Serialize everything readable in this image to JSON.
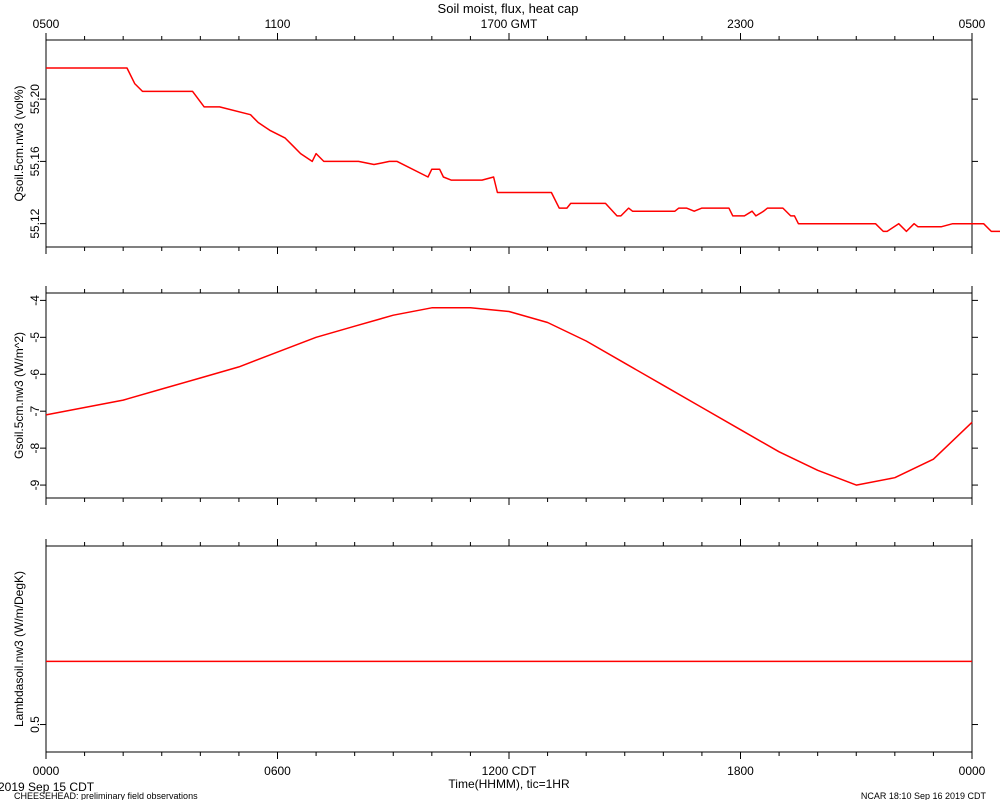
{
  "chart_data": [
    {
      "type": "line",
      "title": "Soil moist, flux, heat cap",
      "top_axis": {
        "label": "GMT",
        "tick_labels": [
          "0500",
          "1100",
          "1700 GMT",
          "2300",
          "0500"
        ]
      },
      "ylabel": "Qsoil.5cm.nw3 (vol%)",
      "ylim": [
        55.105,
        55.238
      ],
      "y_ticks": [
        55.12,
        55.16,
        55.2
      ],
      "y_tick_labels": [
        "55.12",
        "55.16",
        "55.20"
      ],
      "series": [
        {
          "color": "#ff0000",
          "x": [
            0,
            2.1,
            2.3,
            2.5,
            3.8,
            4.1,
            4.5,
            5.3,
            5.5,
            5.8,
            6.2,
            6.4,
            6.6,
            6.9,
            7,
            7.2,
            7.5,
            8.1,
            8.5,
            8.7,
            8.9,
            9.1,
            9.9,
            10,
            10.2,
            10.3,
            10.5,
            11.3,
            11.6,
            11.7,
            12.7,
            13.1,
            13.3,
            13.5,
            13.6,
            14.5,
            14.8,
            14.9,
            15.1,
            15.2,
            15.4,
            16.3,
            16.4,
            16.6,
            16.8,
            17,
            17.3,
            17.7,
            17.8,
            18.1,
            18.3,
            18.4,
            18.6,
            18.7,
            19.1,
            19.3,
            19.4,
            19.5,
            19.7,
            20.2,
            20.5,
            21.2,
            21.5,
            21.7,
            21.8,
            22.1,
            22.3,
            22.5,
            22.6,
            22.9,
            23.2,
            23.5,
            24.3,
            24.5,
            25.1,
            25.7,
            25.8
          ],
          "y": [
            55.22,
            55.22,
            55.21,
            55.205,
            55.205,
            55.195,
            55.195,
            55.19,
            55.185,
            55.18,
            55.175,
            55.17,
            55.165,
            55.16,
            55.165,
            55.16,
            55.16,
            55.16,
            55.158,
            55.159,
            55.16,
            55.16,
            55.15,
            55.155,
            55.155,
            55.15,
            55.148,
            55.148,
            55.15,
            55.14,
            55.14,
            55.14,
            55.13,
            55.13,
            55.133,
            55.133,
            55.125,
            55.125,
            55.13,
            55.128,
            55.128,
            55.128,
            55.13,
            55.13,
            55.128,
            55.13,
            55.13,
            55.13,
            55.125,
            55.125,
            55.128,
            55.125,
            55.128,
            55.13,
            55.13,
            55.125,
            55.125,
            55.12,
            55.12,
            55.12,
            55.12,
            55.12,
            55.12,
            55.115,
            55.115,
            55.12,
            55.115,
            55.12,
            55.118,
            55.118,
            55.118,
            55.12,
            55.12,
            55.115,
            55.115,
            55.113,
            55.113
          ]
        }
      ]
    },
    {
      "type": "line",
      "ylabel": "Gsoil.5cm.nw3 (W/m^2)",
      "ylim": [
        -9.35,
        -3.8
      ],
      "y_ticks": [
        -9,
        -8,
        -7,
        -6,
        -5,
        -4
      ],
      "y_tick_labels": [
        "-9",
        "-8",
        "-7",
        "-6",
        "-5",
        "-4"
      ],
      "series": [
        {
          "color": "#ff0000",
          "x": [
            0,
            1,
            2,
            3,
            4,
            5,
            6,
            7,
            8,
            9,
            10,
            11,
            12,
            13,
            14,
            15,
            16,
            17,
            18,
            19,
            20,
            21,
            22,
            23,
            24
          ],
          "y": [
            -7.1,
            -6.9,
            -6.7,
            -6.4,
            -6.1,
            -5.8,
            -5.4,
            -5.0,
            -4.7,
            -4.4,
            -4.2,
            -4.2,
            -4.3,
            -4.6,
            -5.1,
            -5.7,
            -6.3,
            -6.9,
            -7.5,
            -8.1,
            -8.6,
            -9.0,
            -8.8,
            -8.3,
            -7.3
          ]
        }
      ]
    },
    {
      "type": "line",
      "ylabel": "Lambdasoil.nw3 (W/m/DegK)",
      "ylim": [
        0.4,
        1.15
      ],
      "y_ticks": [
        0.5
      ],
      "y_tick_labels": [
        "0.5"
      ],
      "series": [
        {
          "color": "#ff0000",
          "x": [
            0,
            24
          ],
          "y": [
            0.73,
            0.73
          ]
        }
      ]
    }
  ],
  "bottom_axis": {
    "tick_labels": [
      "0000",
      "0600",
      "1200 CDT",
      "1800",
      "0000"
    ],
    "label": "Time(HHMM), tic=1HR"
  },
  "footer": {
    "date_left": "2019 Sep 15 CDT",
    "project": "CHEESEHEAD: preliminary field observations",
    "credit": "NCAR 18:10 Sep 16 2019 CDT"
  }
}
